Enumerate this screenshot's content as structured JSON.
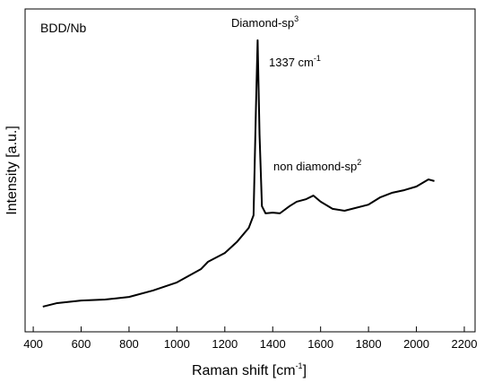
{
  "chart_data": {
    "type": "line",
    "xlabel": {
      "text": "Raman shift [cm",
      "sup": "-1",
      "suffix": "]"
    },
    "ylabel": "Intensity [a.u.]",
    "annotations": [
      {
        "text": "BDD/Nb"
      },
      {
        "text": "Diamond-sp",
        "sup": "3"
      },
      {
        "text": "1337 cm",
        "sup": "-1"
      },
      {
        "text": "non diamond-sp",
        "sup": "2"
      }
    ],
    "xlim": [
      366,
      2245
    ],
    "xticks": [
      400,
      600,
      800,
      1000,
      1200,
      1400,
      1600,
      1800,
      2000,
      2200
    ],
    "ylim": [
      0,
      100
    ],
    "series": [
      {
        "color": "#000000",
        "x": [
          440,
          500,
          600,
          700,
          800,
          900,
          1000,
          1100,
          1130,
          1200,
          1250,
          1300,
          1320,
          1330,
          1337,
          1345,
          1355,
          1370,
          1400,
          1430,
          1470,
          1500,
          1540,
          1570,
          1600,
          1650,
          1700,
          1800,
          1850,
          1900,
          1950,
          2000,
          2050,
          2075
        ],
        "values": [
          7.8,
          8.9,
          9.7,
          10,
          10.8,
          12.8,
          15.3,
          19.4,
          21.7,
          24.4,
          27.8,
          32.2,
          36.1,
          69.4,
          90.3,
          61,
          38.9,
          36.7,
          36.9,
          36.7,
          38.9,
          40.3,
          41.1,
          42.2,
          40.3,
          38.1,
          37.5,
          39.4,
          41.7,
          43.1,
          43.9,
          45,
          47.2,
          46.7
        ]
      }
    ]
  }
}
